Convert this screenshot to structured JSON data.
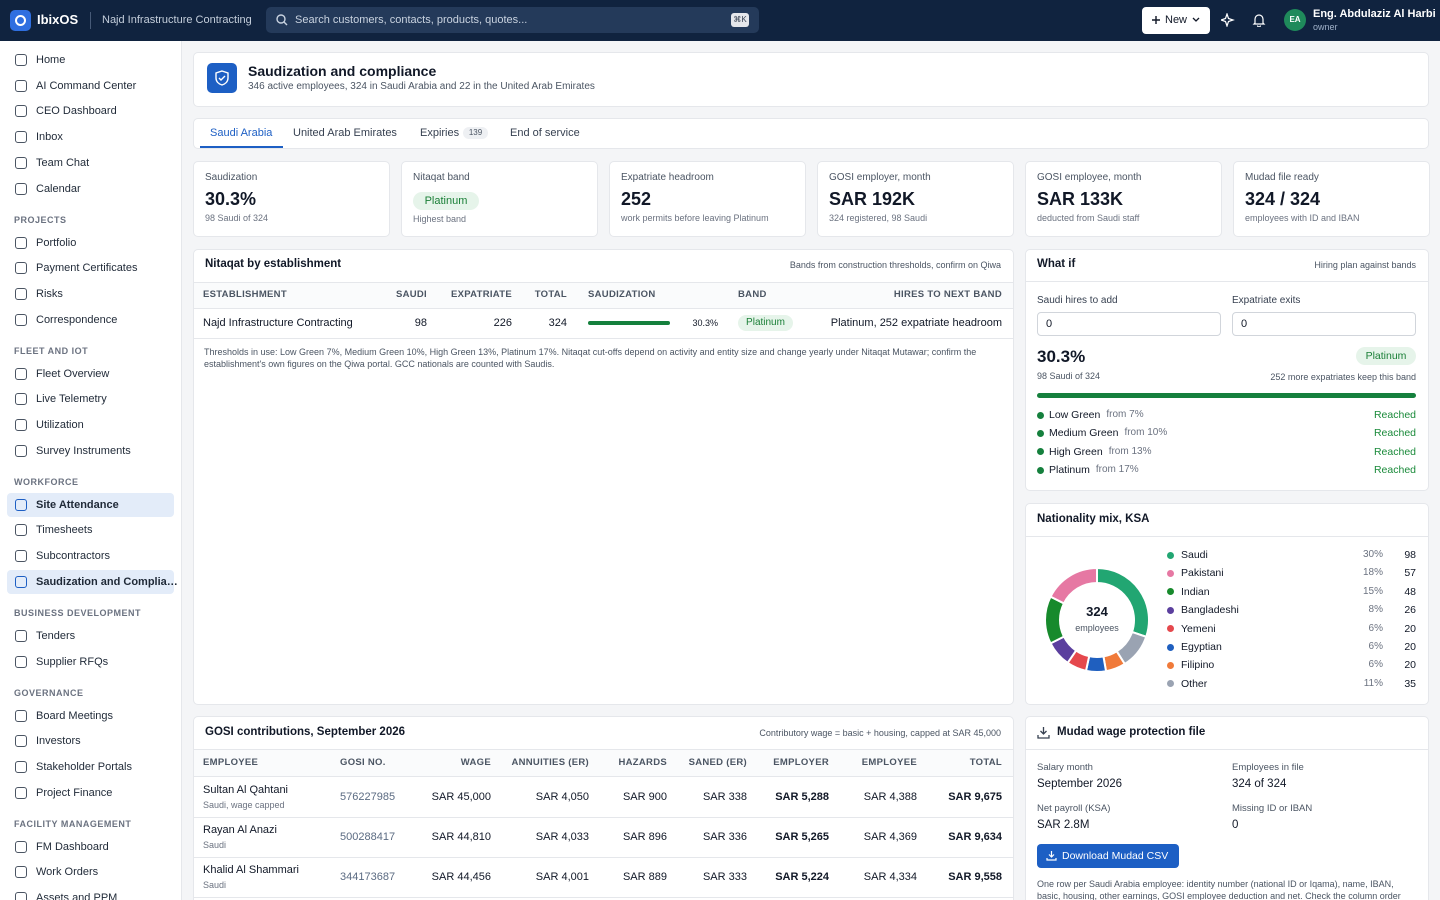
{
  "topbar": {
    "brand": "IbixOS",
    "company": "Najd Infrastructure Contracting",
    "search_placeholder": "Search customers, contacts, products, quotes...",
    "search_shortcut": "⌘K",
    "new_button": "New",
    "user_initials": "EA",
    "user_name": "Eng. Abdulaziz Al Harbi",
    "user_role": "owner"
  },
  "sidebar": {
    "items": [
      {
        "label": "Home"
      },
      {
        "label": "AI Command Center"
      },
      {
        "label": "CEO Dashboard"
      },
      {
        "label": "Inbox"
      },
      {
        "label": "Team Chat"
      },
      {
        "label": "Calendar"
      }
    ],
    "sections": [
      {
        "title": "PROJECTS",
        "items": [
          {
            "label": "Portfolio"
          },
          {
            "label": "Payment Certificates"
          },
          {
            "label": "Risks"
          },
          {
            "label": "Correspondence"
          }
        ]
      },
      {
        "title": "FLEET AND IOT",
        "items": [
          {
            "label": "Fleet Overview"
          },
          {
            "label": "Live Telemetry"
          },
          {
            "label": "Utilization"
          },
          {
            "label": "Survey Instruments"
          }
        ]
      },
      {
        "title": "WORKFORCE",
        "items": [
          {
            "label": "Site Attendance",
            "active": true
          },
          {
            "label": "Timesheets"
          },
          {
            "label": "Subcontractors"
          },
          {
            "label": "Saudization and Complia…",
            "active": true
          }
        ]
      },
      {
        "title": "BUSINESS DEVELOPMENT",
        "items": [
          {
            "label": "Tenders"
          },
          {
            "label": "Supplier RFQs"
          }
        ]
      },
      {
        "title": "GOVERNANCE",
        "items": [
          {
            "label": "Board Meetings"
          },
          {
            "label": "Investors"
          },
          {
            "label": "Stakeholder Portals"
          },
          {
            "label": "Project Finance"
          }
        ]
      },
      {
        "title": "FACILITY MANAGEMENT",
        "items": [
          {
            "label": "FM Dashboard"
          },
          {
            "label": "Work Orders"
          },
          {
            "label": "Assets and PPM"
          }
        ]
      }
    ]
  },
  "header": {
    "title": "Saudization and compliance",
    "subtitle": "346 active employees, 324 in Saudi Arabia and 22 in the United Arab Emirates"
  },
  "tabs": [
    {
      "label": "Saudi Arabia",
      "active": true
    },
    {
      "label": "United Arab Emirates"
    },
    {
      "label": "Expiries",
      "badge": "139"
    },
    {
      "label": "End of service"
    }
  ],
  "kpis": [
    {
      "label": "Saudization",
      "value": "30.3%",
      "note": "98 Saudi of 324"
    },
    {
      "label": "Nitaqat band",
      "badge": "Platinum",
      "note": "Highest band"
    },
    {
      "label": "Expatriate headroom",
      "value": "252",
      "note": "work permits before leaving Platinum"
    },
    {
      "label": "GOSI employer, month",
      "value": "SAR 192K",
      "note": "324 registered, 98 Saudi"
    },
    {
      "label": "GOSI employee, month",
      "value": "SAR 133K",
      "note": "deducted from Saudi staff"
    },
    {
      "label": "Mudad file ready",
      "value": "324 / 324",
      "note": "employees with ID and IBAN"
    }
  ],
  "nitaqat": {
    "title": "Nitaqat by establishment",
    "note_right": "Bands from construction thresholds, confirm on Qiwa",
    "columns": [
      "ESTABLISHMENT",
      "SAUDI",
      "EXPATRIATE",
      "TOTAL",
      "SAUDIZATION",
      "BAND",
      "HIRES TO NEXT BAND"
    ],
    "rows": [
      {
        "establishment": "Najd Infrastructure Contracting",
        "saudi": "98",
        "expatriate": "226",
        "total": "324",
        "saudization": "30.3%",
        "band": "Platinum",
        "hires": "Platinum, 252 expatriate headroom"
      }
    ],
    "footnote": "Thresholds in use: Low Green 7%, Medium Green 10%, High Green 13%, Platinum 17%. Nitaqat cut-offs depend on activity and entity size and change yearly under Nitaqat Mutawar; confirm the establishment's own figures on the Qiwa portal. GCC nationals are counted with Saudis."
  },
  "what_if": {
    "title": "What if",
    "note_right": "Hiring plan against bands",
    "inputs": [
      {
        "label": "Saudi hires to add",
        "value": "0"
      },
      {
        "label": "Expatriate exits",
        "value": "0"
      }
    ],
    "saudization": "30.3%",
    "band": "Platinum",
    "saudi_of": "98 Saudi of 324",
    "band_note": "252 more expatriates keep this band",
    "bands": [
      {
        "name": "Low Green",
        "threshold": "from 7%",
        "status": "Reached"
      },
      {
        "name": "Medium Green",
        "threshold": "from 10%",
        "status": "Reached"
      },
      {
        "name": "High Green",
        "threshold": "from 13%",
        "status": "Reached"
      },
      {
        "name": "Platinum",
        "threshold": "from 17%",
        "status": "Reached"
      }
    ]
  },
  "chart_data": {
    "type": "donut",
    "title": "Nationality mix, KSA",
    "center_value": "324",
    "center_label": "employees",
    "categories": [
      "Saudi",
      "Pakistani",
      "Indian",
      "Bangladeshi",
      "Yemeni",
      "Egyptian",
      "Filipino",
      "Other"
    ],
    "values": [
      98,
      57,
      48,
      26,
      20,
      20,
      20,
      35
    ],
    "percent_labels": [
      "30%",
      "18%",
      "15%",
      "8%",
      "6%",
      "6%",
      "6%",
      "11%"
    ],
    "colors": [
      "#22a672",
      "#e678a3",
      "#178a2c",
      "#5b3f9e",
      "#e5484d",
      "#1f5fbf",
      "#f07a3a",
      "#9aa3b2"
    ]
  },
  "gosi": {
    "title": "GOSI contributions, September 2026",
    "note_right": "Contributory wage = basic + housing, capped at SAR 45,000",
    "columns": [
      "EMPLOYEE",
      "GOSI NO.",
      "WAGE",
      "ANNUITIES (ER)",
      "HAZARDS",
      "SANED (ER)",
      "EMPLOYER",
      "EMPLOYEE",
      "TOTAL"
    ],
    "rows": [
      {
        "name": "Sultan Al Qahtani",
        "detail": "Saudi, wage capped",
        "cells": [
          "576227985",
          "SAR 45,000",
          "SAR 4,050",
          "SAR 900",
          "SAR 338",
          "SAR 5,288",
          "SAR 4,388",
          "SAR 9,675"
        ]
      },
      {
        "name": "Rayan Al Anazi",
        "detail": "Saudi",
        "cells": [
          "500288417",
          "SAR 44,810",
          "SAR 4,033",
          "SAR 896",
          "SAR 336",
          "SAR 5,265",
          "SAR 4,369",
          "SAR 9,634"
        ]
      },
      {
        "name": "Khalid Al Shammari",
        "detail": "Saudi",
        "cells": [
          "344173687",
          "SAR 44,456",
          "SAR 4,001",
          "SAR 889",
          "SAR 333",
          "SAR 5,224",
          "SAR 4,334",
          "SAR 9,558"
        ]
      }
    ]
  },
  "mudad": {
    "title": "Mudad wage protection file",
    "fields": [
      {
        "label": "Salary month",
        "value": "September 2026"
      },
      {
        "label": "Employees in file",
        "value": "324 of 324"
      },
      {
        "label": "Net payroll (KSA)",
        "value": "SAR 2.8M"
      },
      {
        "label": "Missing ID or IBAN",
        "value": "0"
      }
    ],
    "button": "Download Mudad CSV",
    "note": "One row per Saudi Arabia employee: identity number (national ID or Iqama), name, IBAN, basic, housing, other earnings, GOSI employee deduction and net. Check the column order"
  }
}
